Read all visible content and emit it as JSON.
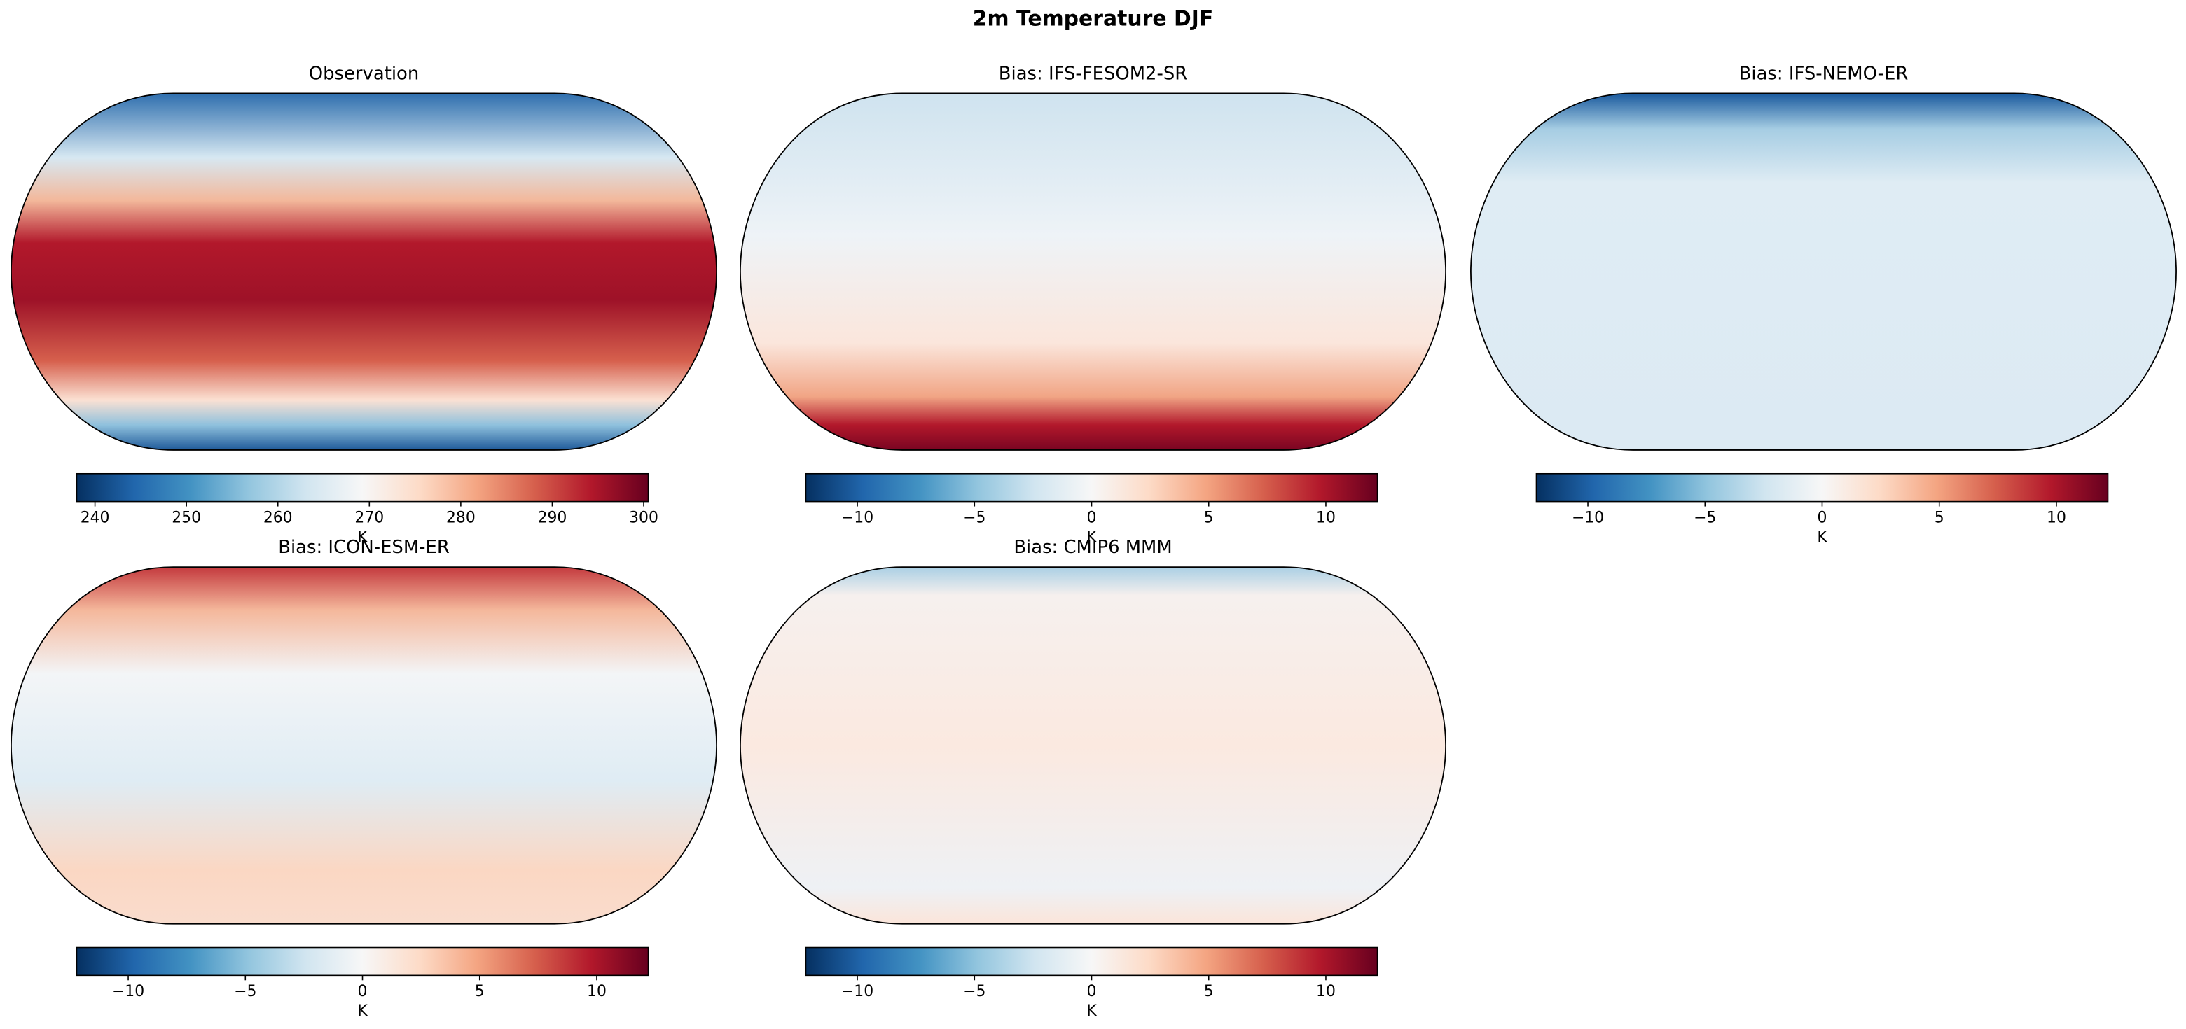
{
  "title": "2m Temperature DJF",
  "panels": [
    {
      "title": "Observation",
      "colorbar": {
        "label": "K",
        "lim": [
          238,
          300.5
        ],
        "ticks": [
          240,
          250,
          260,
          270,
          280,
          290,
          300
        ]
      }
    },
    {
      "title": "Bias: IFS-FESOM2-SR",
      "colorbar": {
        "label": "K",
        "lim": [
          -12.2,
          12.2
        ],
        "ticks": [
          {
            "value": -10,
            "label": "−10"
          },
          {
            "value": -5,
            "label": "−5"
          },
          0,
          5,
          10
        ]
      }
    },
    {
      "title": "Bias: IFS-NEMO-ER",
      "colorbar": {
        "label": "K",
        "lim": [
          -12.2,
          12.2
        ],
        "ticks": [
          {
            "value": -10,
            "label": "−10"
          },
          {
            "value": -5,
            "label": "−5"
          },
          0,
          5,
          10
        ]
      }
    },
    {
      "title": "Bias: ICON-ESM-ER",
      "colorbar": {
        "label": "K",
        "lim": [
          -12.2,
          12.2
        ],
        "ticks": [
          {
            "value": -10,
            "label": "−10"
          },
          {
            "value": -5,
            "label": "−5"
          },
          0,
          5,
          10
        ]
      }
    },
    {
      "title": "Bias: CMIP6 MMM",
      "colorbar": {
        "label": "K",
        "lim": [
          -12.2,
          12.2
        ],
        "ticks": [
          {
            "value": -10,
            "label": "−10"
          },
          {
            "value": -5,
            "label": "−5"
          },
          0,
          5,
          10
        ]
      }
    }
  ]
}
